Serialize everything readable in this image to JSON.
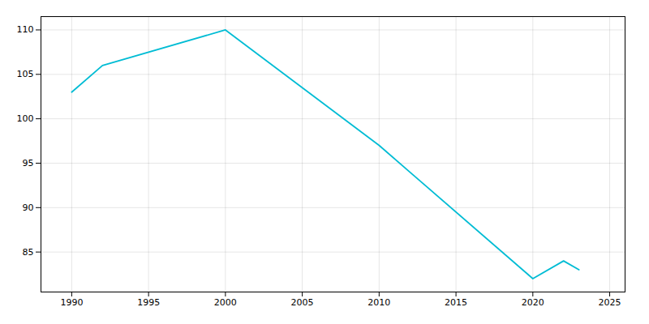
{
  "chart_data": {
    "type": "line",
    "x": [
      1990,
      1992,
      2000,
      2010,
      2020,
      2022,
      2023
    ],
    "values": [
      103,
      106,
      110,
      97,
      82,
      84,
      83
    ],
    "color": "#00BCD4",
    "xlim": [
      1988,
      2026
    ],
    "ylim": [
      80.5,
      111.5
    ],
    "xticks": [
      1990,
      1995,
      2000,
      2005,
      2010,
      2015,
      2020,
      2025
    ],
    "yticks": [
      85,
      90,
      95,
      100,
      105,
      110
    ],
    "grid": true
  }
}
